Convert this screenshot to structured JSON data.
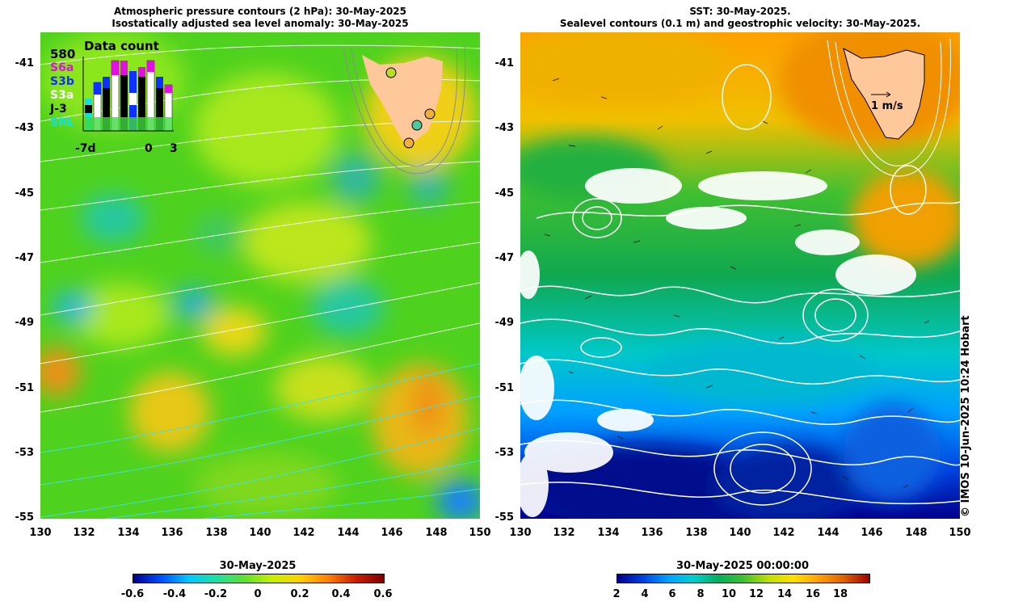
{
  "left_panel": {
    "title_line1": "Atmospheric pressure contours (2 hPa): 30-May-2025",
    "title_line2": "Isostatically adjusted sea level anomaly: 30-May-2025",
    "data_count": {
      "title": "Data count",
      "max_label": "580",
      "satellites": [
        {
          "name": "S6a",
          "color": "#e010e0"
        },
        {
          "name": "S3b",
          "color": "#1030ff"
        },
        {
          "name": "S3a",
          "color": "#ffffff"
        },
        {
          "name": "J-3",
          "color": "#000000"
        },
        {
          "name": "SRL",
          "color": "#10e0e0"
        }
      ],
      "x_labels": {
        "start": "-7d",
        "zero": "0",
        "end": "3"
      }
    },
    "colorbar": {
      "title": "30-May-2025",
      "ticks": [
        "-0.6",
        "-0.4",
        "-0.2",
        "0",
        "0.2",
        "0.4",
        "0.6"
      ],
      "colors": [
        "#00008c",
        "#0050ff",
        "#00c8ff",
        "#20e0a0",
        "#60e030",
        "#c8f000",
        "#ffd000",
        "#ff8000",
        "#c82000",
        "#800000"
      ]
    }
  },
  "right_panel": {
    "title_line1": "SST: 30-May-2025.",
    "title_line2": "Sealevel contours (0.1 m) and geostrophic velocity: 30-May-2025.",
    "velocity_scale_label": "1 m/s",
    "credit": "© IMOS 10-Jun-2025 10:24 Hobart",
    "colorbar": {
      "title": "30-May-2025 00:00:00",
      "ticks": [
        "2",
        "4",
        "6",
        "8",
        "10",
        "12",
        "14",
        "16",
        "18"
      ],
      "colors": [
        "#00008c",
        "#0040e0",
        "#00a0ff",
        "#00d0d0",
        "#00b060",
        "#40c030",
        "#c0e000",
        "#ffe000",
        "#ffa000",
        "#e06000",
        "#a00000"
      ]
    }
  },
  "axes": {
    "y_labels": [
      "-41",
      "-43",
      "-45",
      "-47",
      "-49",
      "-51",
      "-53",
      "-55"
    ],
    "x_labels": [
      "130",
      "132",
      "134",
      "136",
      "138",
      "140",
      "142",
      "144",
      "146",
      "148",
      "150"
    ]
  }
}
